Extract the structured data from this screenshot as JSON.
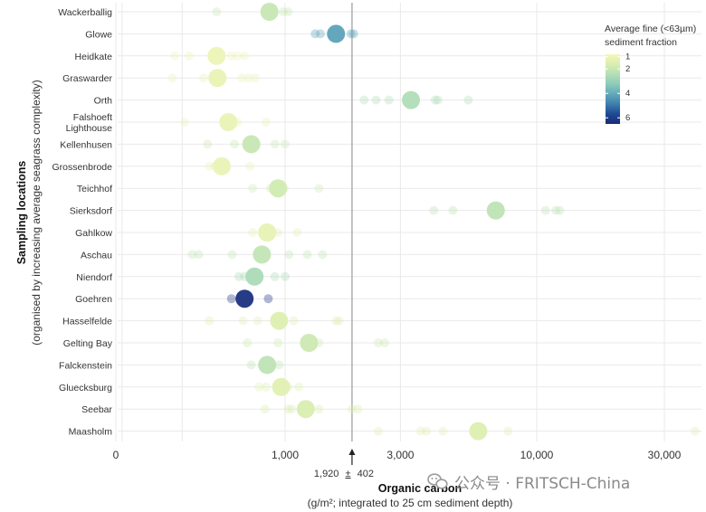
{
  "chart_data": {
    "type": "scatter",
    "ylabel": "Sampling locations",
    "ylabel_sub": "(organised by increasing average seagrass complexity)",
    "xlabel": "Organic carbon",
    "xlabel_sub": "(g/m²; integrated to 25 cm sediment depth)",
    "x_scale": "log",
    "x_ticks": [
      "0",
      "1,000",
      "3,000",
      "10,000",
      "30,000"
    ],
    "x_tick_values": [
      0,
      1000,
      3000,
      10000,
      30000
    ],
    "reference_line": {
      "value": 1920,
      "label_value": "1,920",
      "label_pm": "±",
      "label_err": "402"
    },
    "legend": {
      "title_line1": "Average fine (<63µm)",
      "title_line2": "sediment fraction",
      "ticks": [
        "1",
        "2",
        "4",
        "6"
      ],
      "tick_values": [
        1,
        2,
        4,
        6
      ],
      "range": [
        0.8,
        6.5
      ]
    },
    "colors": {
      "scale": [
        "#f3f6b8",
        "#d9eeb0",
        "#b3dfb6",
        "#8ccbba",
        "#62a9ba",
        "#3f7fac",
        "#1f4996",
        "#1a2a78"
      ],
      "gridline": "#e9e9e9",
      "refline": "#9a9a9a"
    },
    "locations": [
      {
        "name": "Wackerballig",
        "mean": 850,
        "fine": 2.0,
        "samples": [
          470,
          980,
          1030
        ]
      },
      {
        "name": "Glowe",
        "mean": 1650,
        "fine": 4.2,
        "samples": [
          1350,
          1420,
          1900,
          1950
        ]
      },
      {
        "name": "Heidkate",
        "mean": 470,
        "fine": 1.0,
        "samples": [
          270,
          330,
          560,
          600,
          650
        ]
      },
      {
        "name": "Graswarder",
        "mean": 475,
        "fine": 1.1,
        "samples": [
          260,
          400,
          630,
          680,
          730
        ]
      },
      {
        "name": "Orth",
        "mean": 3300,
        "fine": 2.5,
        "samples": [
          2150,
          2400,
          2700,
          4100,
          4200,
          5500
        ]
      },
      {
        "name": "Falshoeft Lighthouse",
        "mean": 540,
        "fine": 1.1,
        "samples": [
          310,
          600,
          820
        ]
      },
      {
        "name": "Kellenhusen",
        "mean": 700,
        "fine": 2.0,
        "samples": [
          420,
          580,
          900,
          1000
        ]
      },
      {
        "name": "Grossenbrode",
        "mean": 500,
        "fine": 1.1,
        "samples": [
          430,
          460,
          690
        ]
      },
      {
        "name": "Teichhof",
        "mean": 930,
        "fine": 1.8,
        "samples": [
          710,
          860,
          990,
          1400
        ]
      },
      {
        "name": "Sierksdorf",
        "mean": 7000,
        "fine": 2.2,
        "samples": [
          4050,
          4800,
          10800,
          11800,
          12200
        ]
      },
      {
        "name": "Gahlkow",
        "mean": 830,
        "fine": 1.2,
        "samples": [
          710,
          790,
          930,
          1130
        ]
      },
      {
        "name": "Aschau",
        "mean": 785,
        "fine": 2.1,
        "samples": [
          345,
          375,
          565,
          1040,
          1250,
          1450
        ]
      },
      {
        "name": "Niendorf",
        "mean": 725,
        "fine": 2.6,
        "samples": [
          610,
          650,
          900,
          1000
        ]
      },
      {
        "name": "Goehren",
        "mean": 650,
        "fine": 6.3,
        "samples": [
          560,
          840
        ]
      },
      {
        "name": "Hasselfelde",
        "mean": 940,
        "fine": 1.5,
        "samples": [
          430,
          640,
          750,
          1090,
          1650,
          1700
        ]
      },
      {
        "name": "Gelting Bay",
        "mean": 1270,
        "fine": 1.9,
        "samples": [
          670,
          930,
          1400,
          2450,
          2600
        ]
      },
      {
        "name": "Falckenstein",
        "mean": 830,
        "fine": 2.2,
        "samples": [
          700,
          940
        ]
      },
      {
        "name": "Gluecksburg",
        "mean": 960,
        "fine": 1.4,
        "samples": [
          760,
          820,
          1030,
          1150
        ]
      },
      {
        "name": "Seebar",
        "mean": 1230,
        "fine": 1.6,
        "samples": [
          810,
          1030,
          1070,
          1400,
          1920,
          2030
        ]
      },
      {
        "name": "Maasholm",
        "mean": 6000,
        "fine": 1.5,
        "samples": [
          2450,
          3600,
          3800,
          4400,
          7800,
          39000
        ]
      }
    ]
  },
  "watermark": {
    "label": "公众号 · FRITSCH-China"
  }
}
